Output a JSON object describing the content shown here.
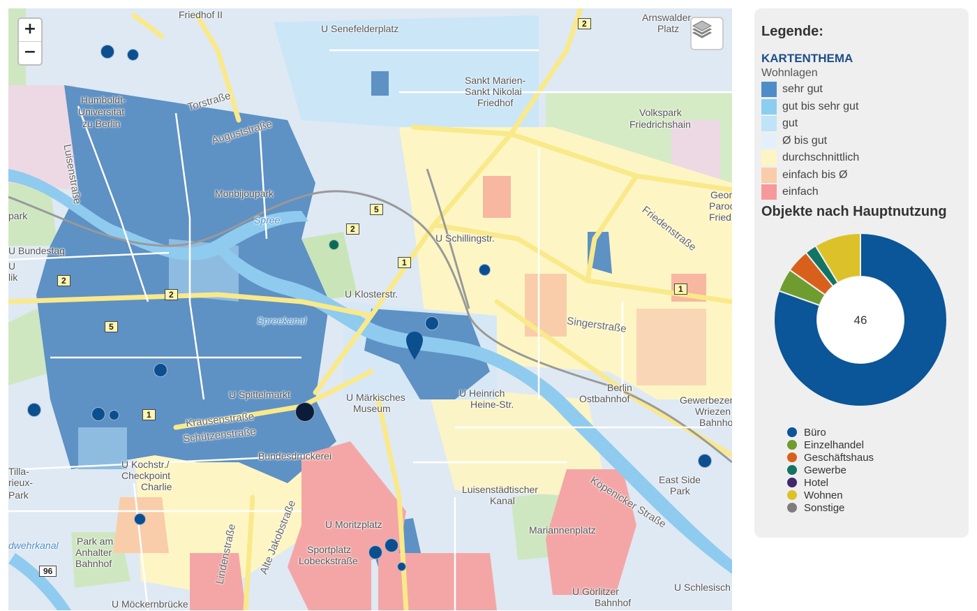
{
  "map": {
    "zoom_in": "+",
    "zoom_out": "−",
    "layers_icon": "layers-icon",
    "labels": {
      "friedhof_ii": "Friedhof II",
      "senefelderplatz": "U Senefelderplatz",
      "arnswalder": "Arnswalder",
      "platz": "Platz",
      "humboldt1": "Humboldt-",
      "humboldt2": "Universität",
      "humboldt3": "zu Berlin",
      "torstrasse": "Torstraße",
      "auguststrasse": "Auguststraße",
      "luisenstrasse": "Luisenstraße",
      "sankt1": "Sankt Marien-",
      "sankt2": "Sankt Nikolai",
      "sankt3": "Friedhof",
      "volkspark1": "Volkspark",
      "volkspark2": "Friedrichshain",
      "monbijoupark": "Monbijoupark",
      "spree": "Spree",
      "park": "park",
      "bundestag": "U Bundestag",
      "schillingstr": "U Schillingstr.",
      "klosterstr": "U Klosterstr.",
      "spreekanal": "Spreekanal",
      "friedenstrasse": "Friedenstraße",
      "geor1": "Geor",
      "geor2": "Paroc",
      "geor3": "Fried",
      "singerstrasse": "Singerstraße",
      "spittelmarkt": "U Spittelmarkt",
      "maerkisches1": "U Märkisches",
      "maerkisches2": "Museum",
      "heinrich1": "U Heinrich",
      "heinrich2": "Heine-Str.",
      "berlin_ost1": "Berlin",
      "berlin_ost2": "Ostbahnhof",
      "gewerbe1": "Gewerbezen",
      "gewerbe2": "Wriezen",
      "gewerbe3": "Bahnho",
      "krausenstrasse": "Krausenstraße",
      "schuetzenstrasse": "Schützenstraße",
      "bundesdruckerei": "Bundesdruckerei",
      "kochstr1": "U Kochstr./",
      "kochstr2": "Checkpoint",
      "kochstr3": "Charlie",
      "tilla1": "Tilla-",
      "tilla2": "rieux-",
      "tilla3": "Park",
      "koepenicker": "Köpenicker Straße",
      "eastside1": "East Side",
      "eastside2": "Park",
      "luisenstaedt1": "Luisenstädtischer",
      "luisenstaedt2": "Kanal",
      "jakobstrasse": "Alte Jakobstraße",
      "lindenstrasse": "Lindenstraße",
      "moritzplatz": "U Moritzplatz",
      "mariannenplatz": "Mariannenplatz",
      "anhalter1": "Park am",
      "anhalter2": "Anhalter",
      "anhalter3": "Bahnhof",
      "sportplatz1": "Sportplatz",
      "sportplatz2": "Lobeckstraße",
      "landwehr": "dwehrkanal",
      "goerlitzer1": "U Görlitzer",
      "goerlitzer2": "Bahnhof",
      "schlesisch": "U Schlesisch",
      "moeckern": "U Möckernbrücke",
      "lik": "lik",
      "left_u": "U"
    },
    "shields": {
      "s2_top": "2",
      "s5_a": "5",
      "s2_b": "2",
      "s1_a": "1",
      "s2_c": "2",
      "s2_d": "2",
      "s5_b": "5",
      "s1_b": "1",
      "s1_c": "1",
      "s96": "96"
    }
  },
  "legend": {
    "title": "Legende:",
    "theme_heading": "KARTENTHEMA",
    "theme_sub": "Wohnlagen",
    "items": [
      {
        "label": "sehr gut",
        "color": "#4f8dc8"
      },
      {
        "label": "gut bis sehr gut",
        "color": "#8ccdf0"
      },
      {
        "label": "gut",
        "color": "#bfe3f7"
      },
      {
        "label": "Ø bis gut",
        "color": "#e3f0fb"
      },
      {
        "label": "durchschnittlich",
        "color": "#fdf6c4"
      },
      {
        "label": "einfach bis Ø",
        "color": "#f9cda9"
      },
      {
        "label": "einfach",
        "color": "#f7999b"
      }
    ],
    "chart_heading": "Objekte nach Hauptnutzung",
    "chart_data": {
      "type": "pie",
      "center_label": "46",
      "categories": [
        "Büro",
        "Einzelhandel",
        "Geschäftshaus",
        "Gewerbe",
        "Hotel",
        "Wohnen",
        "Sonstige"
      ],
      "values": [
        37,
        2,
        2,
        1,
        0,
        4,
        0
      ],
      "colors": [
        "#0b5599",
        "#6e9c2f",
        "#d9601b",
        "#127564",
        "#42266e",
        "#dcc228",
        "#7d7d7d"
      ]
    }
  }
}
